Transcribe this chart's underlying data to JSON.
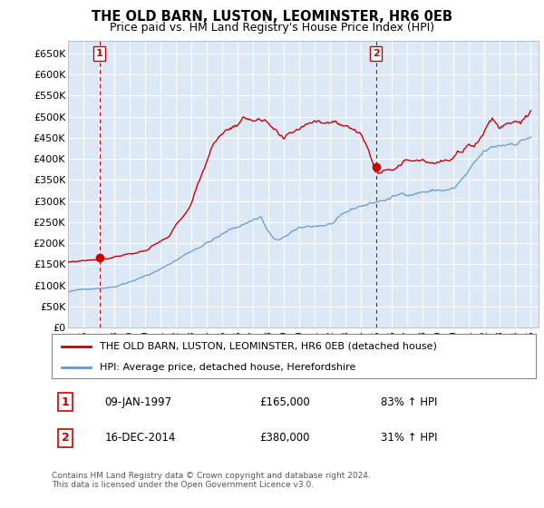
{
  "title": "THE OLD BARN, LUSTON, LEOMINSTER, HR6 0EB",
  "subtitle": "Price paid vs. HM Land Registry's House Price Index (HPI)",
  "ylim": [
    0,
    680000
  ],
  "yticks": [
    0,
    50000,
    100000,
    150000,
    200000,
    250000,
    300000,
    350000,
    400000,
    450000,
    500000,
    550000,
    600000,
    650000
  ],
  "ytick_labels": [
    "£0",
    "£50K",
    "£100K",
    "£150K",
    "£200K",
    "£250K",
    "£300K",
    "£350K",
    "£400K",
    "£450K",
    "£500K",
    "£550K",
    "£600K",
    "£650K"
  ],
  "plot_bg_color": "#dce8f5",
  "fig_bg_color": "#ffffff",
  "line1_color": "#cc0000",
  "line2_color": "#6699cc",
  "grid_color": "#ffffff",
  "sale1_x": 1997.04,
  "sale1_y": 165000,
  "sale2_x": 2014.96,
  "sale2_y": 380000,
  "legend_line1": "THE OLD BARN, LUSTON, LEOMINSTER, HR6 0EB (detached house)",
  "legend_line2": "HPI: Average price, detached house, Herefordshire",
  "annotation1_date": "09-JAN-1997",
  "annotation1_price": "£165,000",
  "annotation1_hpi": "83% ↑ HPI",
  "annotation2_date": "16-DEC-2014",
  "annotation2_price": "£380,000",
  "annotation2_hpi": "31% ↑ HPI",
  "footer": "Contains HM Land Registry data © Crown copyright and database right 2024.\nThis data is licensed under the Open Government Licence v3.0.",
  "xmin": 1995,
  "xmax": 2025.5
}
